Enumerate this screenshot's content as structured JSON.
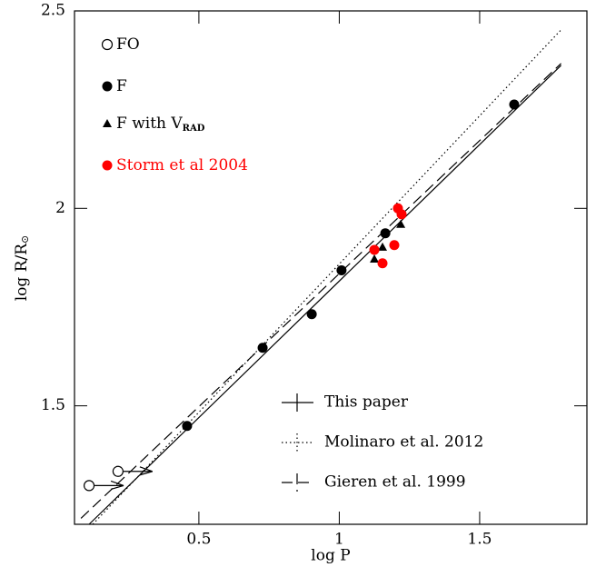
{
  "chart_data": {
    "type": "scatter",
    "x_label": "log P",
    "y_label": "log R/R",
    "y_label_sub": "⊙",
    "xlim": [
      0.057,
      1.882
    ],
    "ylim": [
      1.2,
      2.5
    ],
    "xticks": [
      0.5,
      1,
      1.5
    ],
    "yticks": [
      1.5,
      2,
      2.5
    ],
    "series": [
      {
        "name": "FO",
        "marker": "open-circle",
        "color": "#000000",
        "x": [
          0.109,
          0.212
        ],
        "values": [
          1.298,
          1.334
        ]
      },
      {
        "name": "F",
        "marker": "circle",
        "color": "#000000",
        "x": [
          0.458,
          0.727,
          0.902,
          1.008,
          1.164,
          1.623
        ],
        "values": [
          1.449,
          1.647,
          1.732,
          1.843,
          1.937,
          2.263
        ]
      },
      {
        "name": "F with V",
        "name_sub": "RAD",
        "marker": "triangle",
        "color": "#000000",
        "x": [
          1.125,
          1.154,
          1.219
        ],
        "values": [
          1.872,
          1.902,
          1.96
        ]
      },
      {
        "name": "Storm et al 2004",
        "marker": "circle",
        "color": "#ff0000",
        "x": [
          1.125,
          1.209,
          1.222,
          1.196,
          1.154
        ],
        "values": [
          1.895,
          2.0,
          1.985,
          1.907,
          1.861
        ]
      }
    ],
    "lines": [
      {
        "name": "This paper",
        "style": "solid",
        "x": [
          0.109,
          1.79
        ],
        "values": [
          1.2,
          2.362
        ]
      },
      {
        "name": "Molinaro et al. 2012",
        "style": "dotted",
        "x": [
          0.122,
          1.79
        ],
        "values": [
          1.2,
          2.452
        ]
      },
      {
        "name": "Gieren et al. 1999",
        "style": "dashed",
        "x": [
          0.08,
          1.79
        ],
        "values": [
          1.215,
          2.367
        ]
      }
    ]
  }
}
